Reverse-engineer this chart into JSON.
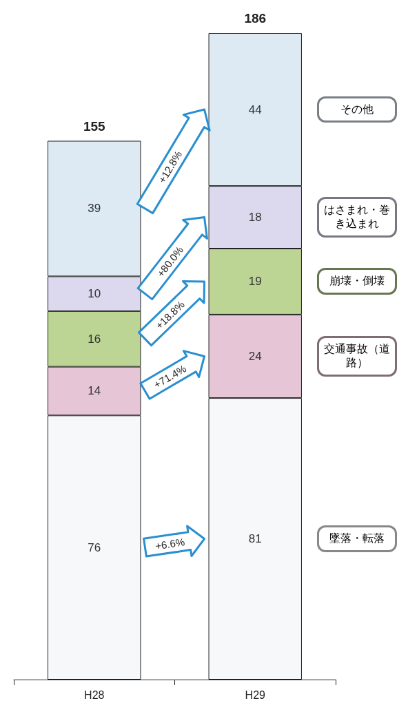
{
  "chart_data": {
    "type": "bar",
    "stacked": true,
    "data_labels": true,
    "legend": "right",
    "categories": [
      "H28",
      "H29"
    ],
    "series": [
      {
        "name": "墜落・転落",
        "color": "#f7f8fa",
        "values": [
          76,
          81
        ]
      },
      {
        "name": "交通事故（道路）",
        "color": "#e6c6d6",
        "values": [
          14,
          24
        ]
      },
      {
        "name": "崩壊・倒壊",
        "color": "#bcd494",
        "values": [
          16,
          19
        ]
      },
      {
        "name": "はさまれ・巻き込まれ",
        "color": "#dcd8ee",
        "values": [
          10,
          18
        ]
      },
      {
        "name": "その他",
        "color": "#dde9f3",
        "values": [
          39,
          44
        ]
      }
    ],
    "totals": [
      "155",
      "186"
    ],
    "annotations": [
      "+6.6%",
      "+71.4%",
      "+18.8%",
      "+80.0%",
      "+12.8%"
    ]
  }
}
